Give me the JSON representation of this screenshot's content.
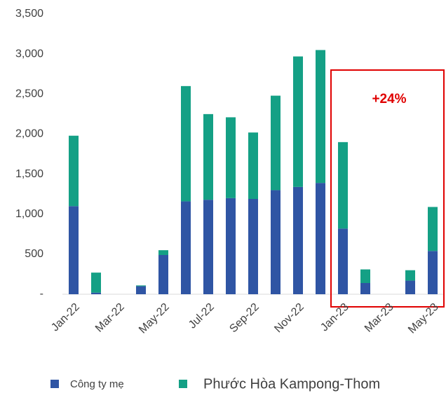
{
  "chart_data": {
    "type": "stacked_bar",
    "categories": [
      "Jan-22",
      null,
      "Mar-22",
      null,
      "May-22",
      null,
      "Jul-22",
      null,
      "Sep-22",
      null,
      "Nov-22",
      null,
      "Jan-23",
      null,
      "Mar-23",
      null,
      "May-23"
    ],
    "series": [
      {
        "name": "Công ty mẹ",
        "color": "#2f55a4",
        "values": [
          1100,
          20,
          null,
          100,
          490,
          1160,
          1180,
          1200,
          1190,
          1300,
          1340,
          1390,
          820,
          140,
          null,
          170,
          540
        ]
      },
      {
        "name": "Phước Hòa Kampong-Thom",
        "color": "#14a085",
        "values": [
          880,
          250,
          null,
          10,
          60,
          1440,
          1070,
          1010,
          830,
          1180,
          1630,
          1660,
          1080,
          170,
          null,
          130,
          550
        ]
      }
    ],
    "ylim": [
      0,
      3500
    ],
    "yticks": [
      {
        "value": 0,
        "label": "-"
      },
      500,
      {
        "value": 1000,
        "label": "1,000"
      },
      {
        "value": 1500,
        "label": "1,500"
      },
      {
        "value": 2000,
        "label": "2,000"
      },
      {
        "value": 2500,
        "label": "2,500"
      },
      {
        "value": 3000,
        "label": "3,000"
      },
      {
        "value": 3500,
        "label": "3,500"
      }
    ],
    "annotation": "+24%",
    "grid": false
  }
}
